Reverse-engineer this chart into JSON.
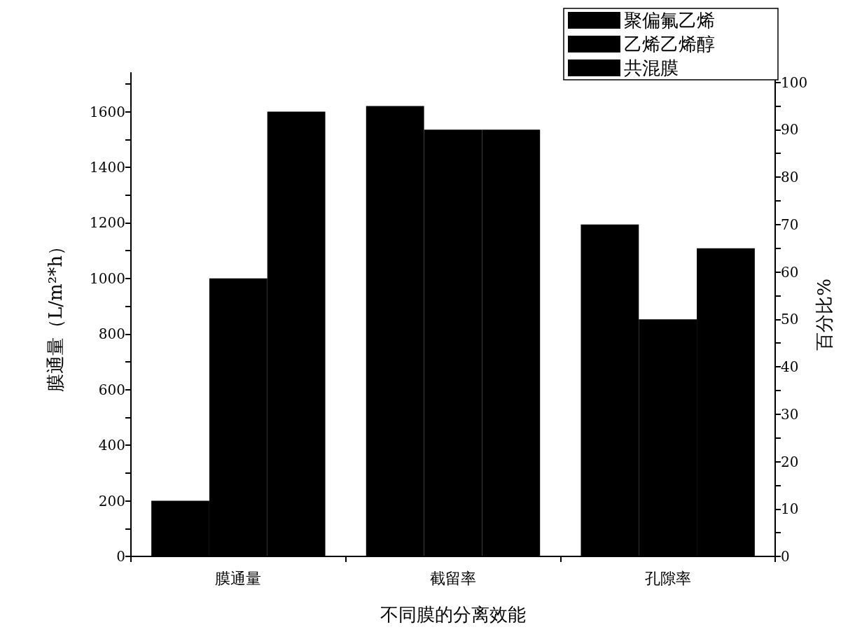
{
  "chart_data": {
    "type": "bar",
    "xlabel": "不同膜的分离效能",
    "ylabel": "膜通量（L/m²*h）",
    "y2label": "百分比%",
    "categories": [
      "膜通量",
      "截留率",
      "孔隙率"
    ],
    "series": [
      {
        "name": "聚偏氟乙烯",
        "color": "#000000",
        "values": [
          200,
          null,
          null
        ]
      },
      {
        "name": "乙烯乙烯醇",
        "color": "#000000",
        "values": [
          1000,
          null,
          null
        ]
      },
      {
        "name": "共混膜",
        "color": "#000000",
        "values": [
          1600,
          null,
          null
        ]
      },
      {
        "color": "#000000",
        "axis": "y2",
        "values": [
          null,
          95,
          70
        ]
      },
      {
        "color": "#000000",
        "axis": "y2",
        "values": [
          null,
          90,
          50
        ]
      },
      {
        "color": "#000000",
        "axis": "y2",
        "values": [
          null,
          90,
          65
        ]
      }
    ],
    "ylim": [
      0,
      1740
    ],
    "yticks": [
      0,
      {
        "value": 100,
        "label": null
      },
      200,
      {
        "value": 300,
        "label": null
      },
      400,
      {
        "value": 500,
        "label": null
      },
      600,
      {
        "value": 700,
        "label": null
      },
      800,
      {
        "value": 900,
        "label": null
      },
      1000,
      {
        "value": 1100,
        "label": null
      },
      1200,
      {
        "value": 1300,
        "label": null
      },
      1400,
      {
        "value": 1500,
        "label": null
      },
      1600,
      {
        "value": 1700,
        "label": null
      }
    ],
    "y2lim": [
      0,
      102
    ],
    "y2ticks": [
      0,
      {
        "value": 5,
        "label": null
      },
      10,
      {
        "value": 15,
        "label": null
      },
      20,
      {
        "value": 25,
        "label": null
      },
      30,
      {
        "value": 35,
        "label": null
      },
      40,
      {
        "value": 45,
        "label": null
      },
      50,
      {
        "value": 55,
        "label": null
      },
      60,
      {
        "value": 65,
        "label": null
      },
      70,
      {
        "value": 75,
        "label": null
      },
      80,
      {
        "value": 85,
        "label": null
      },
      90,
      {
        "value": 95,
        "label": null
      },
      100
    ],
    "grid": false,
    "legend": "top right"
  }
}
